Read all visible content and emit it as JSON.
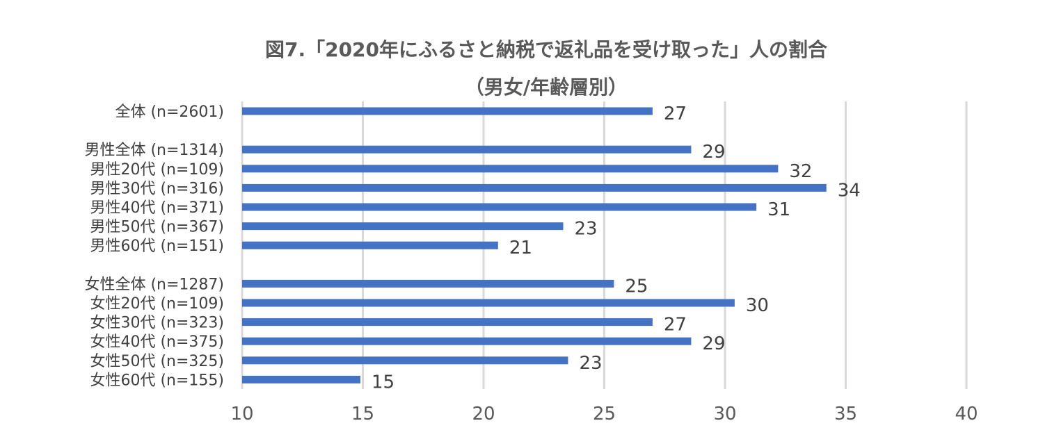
{
  "chart_data": {
    "type": "bar",
    "orientation": "horizontal",
    "title": "図7.「2020年にふるさと納税で返礼品を受け取った」人の割合",
    "subtitle": "（男女/年齢層別）",
    "xlim": [
      10,
      40
    ],
    "xticks": [
      10,
      15,
      20,
      25,
      30,
      35,
      40
    ],
    "grid": "vertical",
    "bar_color": "#4472C4",
    "grid_color": "#D9D9D9",
    "categories": [
      "全体 (n=2601)",
      "男性全体 (n=1314)",
      "男性20代  (n=109)",
      "男性30代 (n=316)",
      "男性40代 (n=371)",
      "男性50代 (n=367)",
      "男性60代 (n=151)",
      "女性全体 (n=1287)",
      "女性20代 (n=109)",
      "女性30代 (n=323)",
      "女性40代 (n=375)",
      "女性50代 (n=325)",
      "女性60代 (n=155)"
    ],
    "groups": [
      0,
      1,
      1,
      1,
      1,
      1,
      1,
      2,
      2,
      2,
      2,
      2,
      2
    ],
    "values": [
      27,
      28.6,
      32.2,
      34.2,
      31.3,
      23.3,
      20.6,
      25.4,
      30.4,
      27.0,
      28.6,
      23.5,
      14.9
    ],
    "labels": [
      "27",
      "29",
      "32",
      "34",
      "31",
      "23",
      "21",
      "25",
      "30",
      "27",
      "29",
      "23",
      "15"
    ]
  }
}
